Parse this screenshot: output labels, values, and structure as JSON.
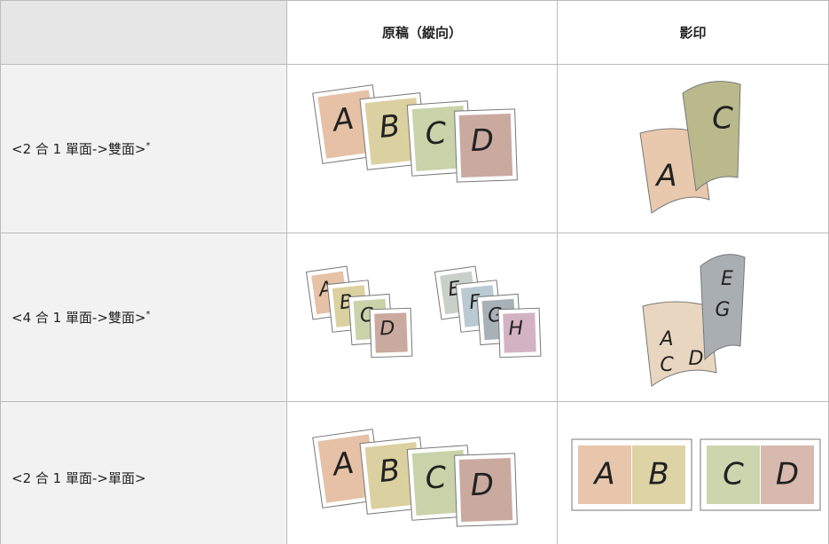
{
  "table": {
    "header": {
      "original": "原稿（縱向）",
      "copy": "影印"
    },
    "rows": [
      {
        "label": "<2 合 1 單面->雙面>",
        "note": "*",
        "original": [
          "A",
          "B",
          "C",
          "D"
        ],
        "copy": [
          "A",
          "C"
        ]
      },
      {
        "label": "<4 合 1 單面->雙面>",
        "note": "*",
        "original": [
          "A",
          "B",
          "C",
          "D",
          "E",
          "F",
          "G",
          "H"
        ],
        "copy": [
          "E",
          "G",
          "A",
          "C",
          "D"
        ]
      },
      {
        "label": "<2 合 1 單面->單面>",
        "original": [
          "A",
          "B",
          "C",
          "D"
        ],
        "copy": [
          "A",
          "B",
          "C",
          "D"
        ]
      }
    ]
  }
}
